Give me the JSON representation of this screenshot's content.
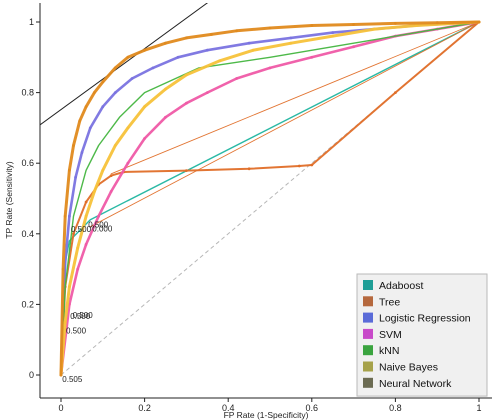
{
  "chart_data": {
    "type": "line",
    "title": "",
    "xlabel": "FP Rate (1-Specificity)",
    "ylabel": "TP Rate (Sensitivity)",
    "xlim": [
      0,
      1
    ],
    "ylim": [
      0,
      1
    ],
    "x_ticks": [
      "0",
      "0.2",
      "0.4",
      "0.6",
      "0.8",
      "1"
    ],
    "y_ticks": [
      "0",
      "0.2",
      "0.4",
      "0.6",
      "0.8",
      "1"
    ],
    "grid": false,
    "legend_position": "bottom-right",
    "threshold_labels": [
      {
        "text": "0.500",
        "x": 0.065,
        "y": 0.418
      },
      {
        "text": "0.500",
        "x": 0.024,
        "y": 0.405
      },
      {
        "text": "0.000",
        "x": 0.075,
        "y": 0.406
      },
      {
        "text": "0.500",
        "x": 0.028,
        "y": 0.162
      },
      {
        "text": "0.500",
        "x": 0.022,
        "y": 0.158
      },
      {
        "text": "0.500",
        "x": 0.012,
        "y": 0.118
      },
      {
        "text": "0.505",
        "x": 0.003,
        "y": -0.02
      }
    ],
    "series": [
      {
        "name": "Adaboost",
        "color": "#1fb5a0",
        "width": 1.4,
        "x": [
          0,
          0.004,
          0.012,
          0.02,
          0.07,
          1
        ],
        "y": [
          0,
          0.2,
          0.33,
          0.38,
          0.44,
          1
        ]
      },
      {
        "name": "Tree",
        "color": "#e06e28",
        "width": 2.0,
        "x": [
          0,
          0.01,
          0.03,
          0.06,
          0.09,
          0.12,
          0.15,
          0.3,
          0.45,
          0.57,
          0.6,
          0.8,
          1
        ],
        "y": [
          0,
          0.25,
          0.4,
          0.49,
          0.54,
          0.565,
          0.575,
          0.579,
          0.584,
          0.592,
          0.595,
          0.8,
          1
        ]
      },
      {
        "name": "Tree (thin)",
        "color": "#e06e28",
        "width": 0.9,
        "x": [
          0.12,
          1
        ],
        "y": [
          0.57,
          1
        ]
      },
      {
        "name": "Tree (thin)",
        "color": "#e06e28",
        "width": 0.9,
        "x": [
          0.07,
          1
        ],
        "y": [
          0.42,
          1
        ]
      },
      {
        "name": "Logistic Regression",
        "color": "#7a73e0",
        "width": 2.6,
        "x": [
          0,
          0.01,
          0.02,
          0.035,
          0.05,
          0.07,
          0.1,
          0.13,
          0.17,
          0.22,
          0.28,
          0.35,
          0.45,
          0.55,
          0.65,
          0.75,
          0.85,
          1
        ],
        "y": [
          0,
          0.32,
          0.45,
          0.56,
          0.63,
          0.7,
          0.76,
          0.8,
          0.84,
          0.87,
          0.9,
          0.92,
          0.94,
          0.955,
          0.97,
          0.98,
          0.99,
          1
        ]
      },
      {
        "name": "SVM",
        "color": "#ef5aa6",
        "width": 2.6,
        "x": [
          0,
          0.02,
          0.04,
          0.06,
          0.09,
          0.12,
          0.16,
          0.2,
          0.25,
          0.3,
          0.35,
          0.42,
          0.5,
          0.6,
          0.7,
          0.8,
          0.9,
          1
        ],
        "y": [
          0,
          0.2,
          0.3,
          0.37,
          0.45,
          0.52,
          0.6,
          0.67,
          0.73,
          0.77,
          0.8,
          0.84,
          0.87,
          0.9,
          0.93,
          0.96,
          0.98,
          1
        ]
      },
      {
        "name": "kNN",
        "color": "#43b53f",
        "width": 1.4,
        "x": [
          0,
          0.01,
          0.03,
          0.06,
          0.09,
          0.14,
          0.2,
          0.33,
          0.5,
          0.7,
          0.85,
          1
        ],
        "y": [
          0,
          0.25,
          0.45,
          0.58,
          0.65,
          0.73,
          0.8,
          0.87,
          0.9,
          0.94,
          0.97,
          1
        ]
      },
      {
        "name": "Naive Bayes",
        "color": "#f7c23a",
        "width": 3.0,
        "x": [
          0,
          0.01,
          0.02,
          0.04,
          0.06,
          0.08,
          0.1,
          0.13,
          0.16,
          0.2,
          0.25,
          0.3,
          0.38,
          0.46,
          0.55,
          0.65,
          0.75,
          0.85,
          1
        ],
        "y": [
          0,
          0.15,
          0.25,
          0.36,
          0.45,
          0.52,
          0.58,
          0.65,
          0.7,
          0.76,
          0.81,
          0.85,
          0.89,
          0.92,
          0.94,
          0.96,
          0.98,
          0.99,
          1
        ]
      },
      {
        "name": "Neural Network",
        "color": "#e08a1e",
        "width": 3.0,
        "x": [
          0,
          0.005,
          0.01,
          0.02,
          0.03,
          0.045,
          0.06,
          0.08,
          0.1,
          0.13,
          0.16,
          0.2,
          0.25,
          0.3,
          0.36,
          0.42,
          0.5,
          0.6,
          0.7,
          0.8,
          0.9,
          1
        ],
        "y": [
          0,
          0.3,
          0.45,
          0.58,
          0.65,
          0.72,
          0.76,
          0.8,
          0.83,
          0.87,
          0.9,
          0.92,
          0.94,
          0.955,
          0.965,
          0.975,
          0.983,
          0.99,
          0.993,
          0.996,
          0.998,
          1
        ]
      }
    ],
    "reference_lines": [
      {
        "name": "chance-diagonal",
        "color": "#b7b7b7",
        "dash": true,
        "x": [
          0,
          1
        ],
        "y": [
          0,
          1
        ]
      },
      {
        "name": "iso-performance-line",
        "color": "#222222",
        "dash": false,
        "x": [
          -0.06,
          0.38
        ],
        "y": [
          0.7,
          1.08
        ]
      }
    ],
    "legend": [
      {
        "label": "Adaboost",
        "color": "#1f9e96"
      },
      {
        "label": "Tree",
        "color": "#b5683d"
      },
      {
        "label": "Logistic Regression",
        "color": "#5a6bd8"
      },
      {
        "label": "SVM",
        "color": "#c84ac9"
      },
      {
        "label": "kNN",
        "color": "#3aa43f"
      },
      {
        "label": "Naive Bayes",
        "color": "#a6a24a"
      },
      {
        "label": "Neural Network",
        "color": "#6b6b52"
      }
    ]
  }
}
